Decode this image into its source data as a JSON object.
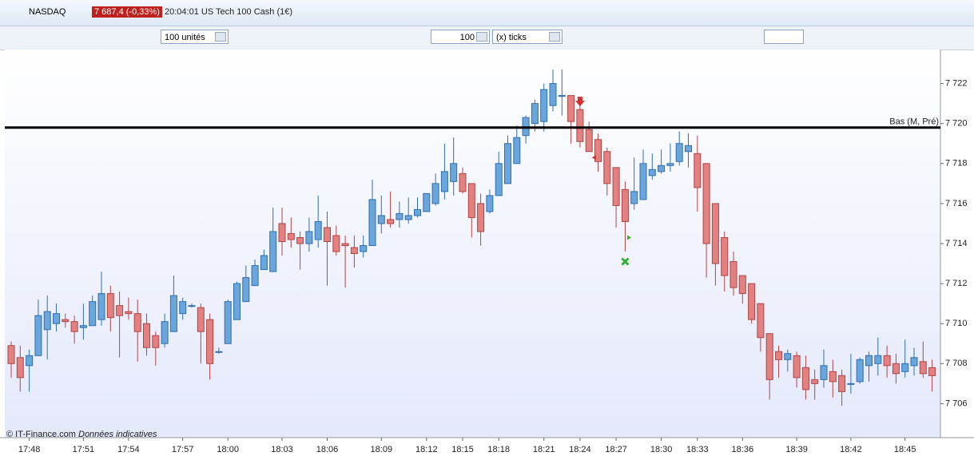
{
  "header": {
    "symbol": "NASDAQ",
    "price": "7 687,4 (-0,33%)",
    "info": "20:04:01 US Tech 100 Cash (1€)"
  },
  "toolbar": {
    "size": "100 unités",
    "ticks_value": "100",
    "ticks_unit": "(x) ticks"
  },
  "footer": {
    "copyright": "© IT-Finance.com",
    "note": "Données indicatives"
  },
  "chart_data": {
    "type": "candlestick",
    "up_color": "#6aa6dc",
    "down_color": "#e38181",
    "categories": [
      null,
      null,
      "17:48",
      null,
      null,
      null,
      null,
      null,
      "17:51",
      null,
      null,
      null,
      null,
      "17:54",
      null,
      null,
      null,
      null,
      null,
      "17:57",
      null,
      null,
      null,
      null,
      "18:00",
      null,
      null,
      null,
      null,
      null,
      "18:03",
      null,
      null,
      null,
      null,
      "18:06",
      null,
      null,
      null,
      null,
      null,
      "18:09",
      null,
      null,
      null,
      null,
      "18:12",
      null,
      null,
      null,
      "18:15",
      null,
      null,
      null,
      "18:18",
      null,
      null,
      null,
      null,
      "18:21",
      null,
      null,
      null,
      "18:24",
      null,
      null,
      null,
      "18:27",
      null,
      null,
      null,
      null,
      "18:30",
      null,
      null,
      null,
      "18:33",
      null,
      null,
      null,
      null,
      "18:36",
      null,
      null,
      null,
      null,
      null,
      "18:39",
      null,
      null,
      null,
      null,
      null,
      "18:42",
      null,
      null,
      null,
      null,
      null,
      "18:45",
      null,
      null,
      null
    ],
    "open": [
      7708.9,
      7708.3,
      7707.9,
      7708.4,
      7709.7,
      7710.0,
      7710.2,
      7710.1,
      7709.8,
      7709.9,
      7710.2,
      7711.5,
      7710.9,
      7710.6,
      7710.5,
      7710.0,
      7709.4,
      7709.0,
      7709.6,
      7710.5,
      7710.9,
      7710.8,
      7710.2,
      7708.6,
      7709.0,
      7710.2,
      7711.1,
      7711.9,
      7712.7,
      7712.6,
      7715.0,
      7714.5,
      7714.3,
      7714.0,
      7714.2,
      7714.8,
      7714.4,
      7714.0,
      7713.8,
      7713.6,
      7713.9,
      7715.0,
      7715.2,
      7715.2,
      7715.2,
      7715.4,
      7715.6,
      7716.0,
      7716.6,
      7717.1,
      7717.5,
      7717.0,
      7716.0,
      7715.6,
      7716.4,
      7717.0,
      7718.0,
      7719.4,
      7720.0,
      7720.1,
      7720.9,
      7721.4,
      7721.4,
      7720.7,
      7719.7,
      7719.2,
      7718.6,
      7717.8,
      7716.7,
      7716.0,
      7716.2,
      7717.4,
      7717.6,
      7717.9,
      7718.1,
      7718.6,
      7718.5,
      7718.0,
      7716.0,
      7714.3,
      7713.1,
      7712.4,
      7712.0,
      7711.0,
      7709.5,
      7708.6,
      7708.2,
      7708.4,
      7707.8,
      7707.2,
      7707.2,
      7707.6,
      7707.4,
      7707.0,
      7707.1,
      7707.9,
      7708.0,
      7708.4,
      7708.0,
      7707.6,
      7707.9,
      7708.1,
      7707.8
    ],
    "high": [
      7709.1,
      7708.9,
      7708.7,
      7711.2,
      7711.4,
      7711.0,
      7710.5,
      7710.4,
      7711.0,
      7711.4,
      7712.6,
      7711.9,
      7711.6,
      7711.3,
      7711.2,
      7710.5,
      7709.6,
      7710.5,
      7712.4,
      7711.3,
      7711.0,
      7711.0,
      7710.5,
      7708.8,
      7711.2,
      7712.1,
      7712.9,
      7713.2,
      7713.7,
      7715.8,
      7715.8,
      7715.3,
      7714.6,
      7715.3,
      7716.4,
      7715.6,
      7714.9,
      7714.4,
      7714.4,
      7714.4,
      7717.2,
      7716.4,
      7716.6,
      7716.1,
      7716.3,
      7716.3,
      7716.5,
      7717.5,
      7719.0,
      7719.3,
      7717.8,
      7717.0,
      7716.5,
      7716.7,
      7718.6,
      7719.4,
      7719.9,
      7720.4,
      7721.2,
      7722.0,
      7722.7,
      7722.7,
      7721.4,
      7720.9,
      7720.1,
      7719.5,
      7718.8,
      7717.8,
      7717.1,
      7718.3,
      7718.7,
      7718.5,
      7718.7,
      7719.0,
      7719.6,
      7719.5,
      7719.4,
      7718.0,
      7716.0,
      7714.6,
      7713.6,
      7712.4,
      7712.0,
      7711.0,
      7709.5,
      7708.9,
      7708.7,
      7708.6,
      7708.4,
      7707.7,
      7708.7,
      7708.2,
      7707.7,
      7708.5,
      7708.3,
      7708.6,
      7709.3,
      7708.9,
      7708.5,
      7709.2,
      7708.8,
      7709.1,
      7708.2
    ],
    "low": [
      7707.3,
      7706.6,
      7706.6,
      7708.4,
      7708.2,
      7709.6,
      7709.8,
      7709.0,
      7709.2,
      7709.9,
      7709.9,
      7709.6,
      7708.3,
      7710.2,
      7708.1,
      7708.4,
      7707.9,
      7708.8,
      7709.6,
      7710.2,
      7710.8,
      7708.0,
      7707.2,
      7708.5,
      7709.0,
      7710.2,
      7711.1,
      7711.9,
      7712.7,
      7712.6,
      7713.4,
      7713.8,
      7712.7,
      7713.6,
      7713.8,
      7711.9,
      7713.4,
      7711.8,
      7712.8,
      7713.3,
      7713.9,
      7714.5,
      7714.8,
      7714.8,
      7715.0,
      7715.3,
      7715.6,
      7715.9,
      7716.2,
      7716.4,
      7716.5,
      7714.3,
      7713.9,
      7715.5,
      7716.4,
      7717.0,
      7718.0,
      7719.0,
      7719.6,
      7719.6,
      7720.6,
      7720.4,
      7719.0,
      7718.8,
      7718.6,
      7717.6,
      7716.4,
      7714.8,
      7713.6,
      7715.7,
      7716.2,
      7717.2,
      7717.5,
      7717.6,
      7717.9,
      7717.8,
      7715.6,
      7712.3,
      7711.9,
      7711.6,
      7711.4,
      7711.0,
      7710.0,
      7708.6,
      7706.2,
      7707.3,
      7707.6,
      7706.8,
      7706.2,
      7706.2,
      7706.8,
      7706.3,
      7705.9,
      7706.5,
      7707.0,
      7707.1,
      7707.4,
      7707.3,
      7707.0,
      7707.3,
      7707.4,
      7707.3,
      7706.6
    ],
    "close": [
      7708.0,
      7707.3,
      7708.4,
      7710.4,
      7710.6,
      7710.5,
      7710.1,
      7709.6,
      7709.9,
      7711.1,
      7711.5,
      7710.3,
      7710.4,
      7710.5,
      7709.6,
      7708.8,
      7708.8,
      7710.1,
      7711.4,
      7711.1,
      7710.9,
      7709.6,
      7708.0,
      7708.6,
      7711.1,
      7712.0,
      7712.3,
      7712.9,
      7713.4,
      7714.6,
      7714.1,
      7714.2,
      7714.0,
      7714.6,
      7715.1,
      7714.1,
      7713.6,
      7713.9,
      7713.5,
      7713.9,
      7716.2,
      7715.4,
      7715.0,
      7715.5,
      7715.4,
      7715.7,
      7716.5,
      7717.0,
      7717.6,
      7718.0,
      7716.6,
      7715.3,
      7714.6,
      7716.4,
      7718.0,
      7719.0,
      7719.3,
      7720.3,
      7721.0,
      7721.7,
      7722.0,
      7721.4,
      7720.1,
      7719.1,
      7718.6,
      7718.1,
      7717.0,
      7715.9,
      7715.1,
      7716.6,
      7718.0,
      7717.7,
      7717.9,
      7718.0,
      7719.0,
      7718.9,
      7716.8,
      7714.0,
      7713.0,
      7712.4,
      7711.8,
      7711.5,
      7710.2,
      7709.3,
      7707.2,
      7708.2,
      7708.5,
      7707.3,
      7706.7,
      7707.0,
      7707.9,
      7707.1,
      7706.6,
      7707.0,
      7708.2,
      7708.4,
      7708.4,
      7707.9,
      7707.5,
      7708.0,
      7708.3,
      7707.5,
      7707.4
    ],
    "ylim": [
      7704.3,
      7723.7
    ],
    "yticks": [
      {
        "value": 7706,
        "label": "7 706"
      },
      {
        "value": 7708,
        "label": "7 708"
      },
      {
        "value": 7710,
        "label": "7 710"
      },
      {
        "value": 7712,
        "label": "7 712"
      },
      {
        "value": 7714,
        "label": "7 714"
      },
      {
        "value": 7716,
        "label": "7 716"
      },
      {
        "value": 7718,
        "label": "7 718"
      },
      {
        "value": 7720,
        "label": "7 720"
      },
      {
        "value": 7722,
        "label": "7 722"
      }
    ],
    "level": {
      "label": "Bas (M, Pré)",
      "value": 7719.8
    },
    "markers": [
      {
        "shape": "arrow-down",
        "color": "#d03030",
        "index": 63,
        "value": 7721.1
      },
      {
        "shape": "triangle-left",
        "color": "#d03030",
        "index": 64.5,
        "value": 7718.3
      },
      {
        "shape": "triangle-right",
        "color": "#2fb02f",
        "index": 68.5,
        "value": 7714.3
      },
      {
        "shape": "cross",
        "color": "#2fb02f",
        "index": 68,
        "value": 7713.1
      }
    ]
  }
}
